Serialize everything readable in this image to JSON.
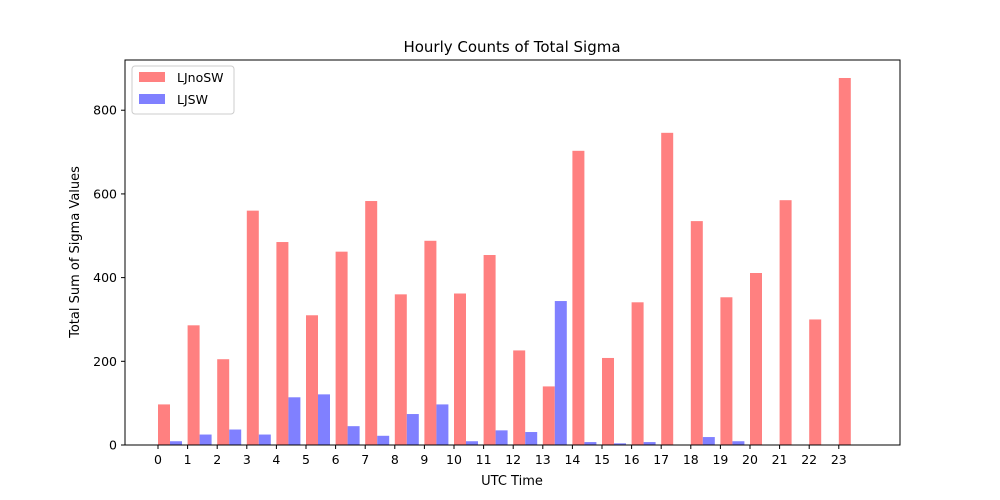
{
  "chart_data": {
    "type": "bar",
    "title": "Hourly Counts of Total Sigma",
    "xlabel": "UTC Time",
    "ylabel": "Total Sum of Sigma Values",
    "categories": [
      "0",
      "1",
      "2",
      "3",
      "4",
      "5",
      "6",
      "7",
      "8",
      "9",
      "10",
      "11",
      "12",
      "13",
      "14",
      "15",
      "16",
      "17",
      "18",
      "19",
      "20",
      "21",
      "22",
      "23"
    ],
    "series": [
      {
        "name": "LJnoSW",
        "color": "#ff8080",
        "values": [
          97,
          286,
          205,
          560,
          485,
          310,
          462,
          583,
          360,
          488,
          362,
          454,
          226,
          140,
          703,
          208,
          341,
          746,
          535,
          353,
          411,
          585,
          300,
          877
        ]
      },
      {
        "name": "LJSW",
        "color": "#8080ff",
        "values": [
          9,
          25,
          37,
          25,
          114,
          121,
          45,
          22,
          74,
          97,
          9,
          35,
          31,
          344,
          7,
          4,
          7,
          0,
          19,
          9,
          0,
          0,
          0,
          0
        ]
      }
    ],
    "ylim": [
      0,
      920
    ],
    "yticks": [
      0,
      200,
      400,
      600,
      800
    ],
    "grid": false,
    "legend_placement": "top-left"
  }
}
